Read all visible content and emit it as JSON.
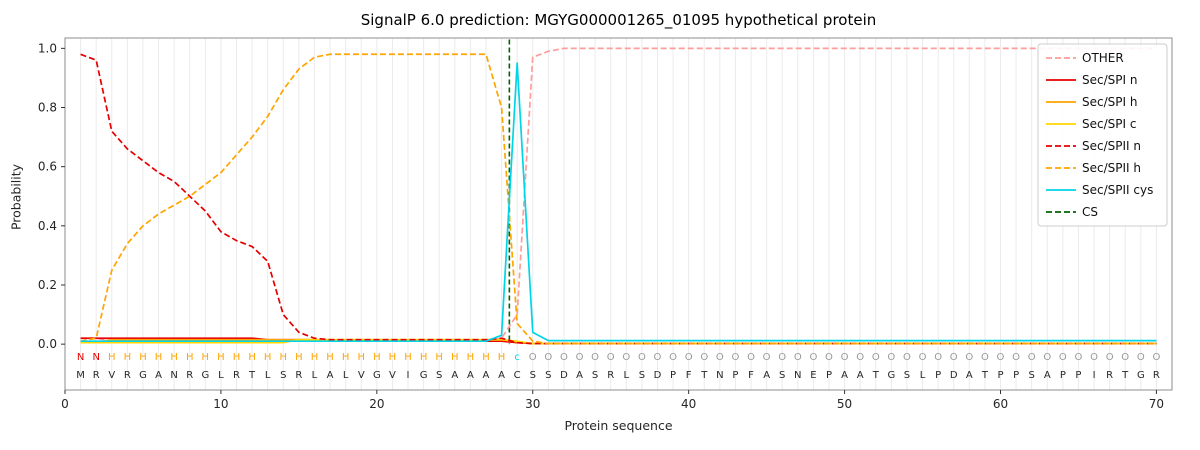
{
  "chart_data": {
    "type": "line",
    "title": "SignalP 6.0 prediction: MGYG000001265_01095 hypothetical protein",
    "xlabel": "Protein sequence",
    "ylabel": "Probability",
    "xlim": [
      0,
      71
    ],
    "ylim": [
      -0.155,
      1.035
    ],
    "xticks": [
      0,
      10,
      20,
      30,
      40,
      50,
      60,
      70
    ],
    "yticks": [
      0,
      0.2,
      0.4,
      0.6,
      0.8,
      1
    ],
    "grid": "vertical-line-per-residue",
    "legend_position": "upper-right",
    "sequence": "MRVRGANRGLRTLSRLALVGVIGSAAAACSSDASRLSDPFTNPFASNEPAATGSLPDATPPSAPPIRTGR",
    "annotation": "NNHHHHHHHHHHHHHHHHHHHHHHHHHHcOOOOOOOOOOOOOOOOOOOOOOOOOOOOOOOOOOOOOOOOO",
    "annotation_colors": {
      "N": "#e60000",
      "H": "#ffa500",
      "c": "#00d5e8",
      "O": "#999999"
    },
    "sequence_color": "#262626",
    "cs_line": {
      "label": "CS",
      "x": 28.5,
      "color": "#006400",
      "style": "dashed"
    },
    "legend_labels": [
      "OTHER",
      "Sec/SPI n",
      "Sec/SPI h",
      "Sec/SPI c",
      "Sec/SPII n",
      "Sec/SPII h",
      "Sec/SPII cys",
      "CS"
    ],
    "series": [
      {
        "name": "OTHER",
        "color": "#ff9c9c",
        "style": "dashed",
        "values": [
          0.02,
          0.02,
          0.01,
          0.01,
          0.01,
          0.01,
          0.01,
          0.01,
          0.01,
          0.01,
          0.01,
          0.01,
          0.01,
          0.01,
          0.01,
          0.01,
          0.01,
          0.01,
          0.01,
          0.01,
          0.01,
          0.01,
          0.01,
          0.01,
          0.01,
          0.01,
          0.01,
          0.02,
          0.1,
          0.97,
          0.99,
          1,
          1,
          1,
          1,
          1,
          1,
          1,
          1,
          1,
          1,
          1,
          1,
          1,
          1,
          1,
          1,
          1,
          1,
          1,
          1,
          1,
          1,
          1,
          1,
          1,
          1,
          1,
          1,
          1,
          1,
          1,
          1,
          1,
          1,
          1,
          1,
          1,
          1,
          1
        ]
      },
      {
        "name": "Sec/SPI n",
        "color": "#e60000",
        "style": "solid",
        "values": [
          0.02,
          0.02,
          0.02,
          0.02,
          0.02,
          0.02,
          0.02,
          0.02,
          0.02,
          0.02,
          0.02,
          0.02,
          0.015,
          0.015,
          0.015,
          0.015,
          0.01,
          0.01,
          0.01,
          0.01,
          0.01,
          0.01,
          0.01,
          0.01,
          0.01,
          0.01,
          0.01,
          0.01,
          0.005,
          0.002,
          0.002,
          0.002,
          0.002,
          0.002,
          0.002,
          0.002,
          0.002,
          0.002,
          0.002,
          0.002,
          0.002,
          0.002,
          0.002,
          0.002,
          0.002,
          0.002,
          0.002,
          0.002,
          0.002,
          0.002,
          0.002,
          0.002,
          0.002,
          0.002,
          0.002,
          0.002,
          0.002,
          0.002,
          0.002,
          0.002,
          0.002,
          0.002,
          0.002,
          0.002,
          0.002,
          0.002,
          0.002,
          0.002,
          0.002,
          0.002
        ]
      },
      {
        "name": "Sec/SPI h",
        "color": "#ffa500",
        "style": "solid",
        "values": [
          0.005,
          0.005,
          0.015,
          0.015,
          0.015,
          0.015,
          0.015,
          0.015,
          0.015,
          0.015,
          0.015,
          0.015,
          0.015,
          0.015,
          0.015,
          0.015,
          0.015,
          0.015,
          0.015,
          0.015,
          0.015,
          0.015,
          0.015,
          0.015,
          0.015,
          0.015,
          0.015,
          0.015,
          0.008,
          0.002,
          0.002,
          0.002,
          0.002,
          0.002,
          0.002,
          0.002,
          0.002,
          0.002,
          0.002,
          0.002,
          0.002,
          0.002,
          0.002,
          0.002,
          0.002,
          0.002,
          0.002,
          0.002,
          0.002,
          0.002,
          0.002,
          0.002,
          0.002,
          0.002,
          0.002,
          0.002,
          0.002,
          0.002,
          0.002,
          0.002,
          0.002,
          0.002,
          0.002,
          0.002,
          0.002,
          0.002,
          0.002,
          0.002,
          0.002,
          0.002
        ]
      },
      {
        "name": "Sec/SPI c",
        "color": "#ffd700",
        "style": "solid",
        "values": [
          0.005,
          0.005,
          0.005,
          0.005,
          0.005,
          0.005,
          0.005,
          0.005,
          0.005,
          0.005,
          0.005,
          0.005,
          0.005,
          0.005,
          0.015,
          0.015,
          0.015,
          0.015,
          0.015,
          0.015,
          0.015,
          0.015,
          0.015,
          0.015,
          0.015,
          0.015,
          0.015,
          0.015,
          0.01,
          0.002,
          0.002,
          0.002,
          0.002,
          0.002,
          0.002,
          0.002,
          0.002,
          0.002,
          0.002,
          0.002,
          0.002,
          0.002,
          0.002,
          0.002,
          0.002,
          0.002,
          0.002,
          0.002,
          0.002,
          0.002,
          0.002,
          0.002,
          0.002,
          0.002,
          0.002,
          0.002,
          0.002,
          0.002,
          0.002,
          0.002,
          0.002,
          0.002,
          0.002,
          0.002,
          0.002,
          0.002,
          0.002,
          0.002,
          0.002,
          0.002
        ]
      },
      {
        "name": "Sec/SPII n",
        "color": "#e60000",
        "style": "dashed",
        "values": [
          0.98,
          0.96,
          0.72,
          0.66,
          0.62,
          0.58,
          0.55,
          0.5,
          0.45,
          0.38,
          0.35,
          0.33,
          0.28,
          0.1,
          0.04,
          0.02,
          0.015,
          0.015,
          0.015,
          0.015,
          0.015,
          0.015,
          0.015,
          0.015,
          0.015,
          0.015,
          0.015,
          0.02,
          0.005,
          0.002,
          0.002,
          0.002,
          0.002,
          0.002,
          0.002,
          0.002,
          0.002,
          0.002,
          0.002,
          0.002,
          0.002,
          0.002,
          0.002,
          0.002,
          0.002,
          0.002,
          0.002,
          0.002,
          0.002,
          0.002,
          0.002,
          0.002,
          0.002,
          0.002,
          0.002,
          0.002,
          0.002,
          0.002,
          0.002,
          0.002,
          0.002,
          0.002,
          0.002,
          0.002,
          0.002,
          0.002,
          0.002,
          0.002,
          0.002,
          0.002
        ]
      },
      {
        "name": "Sec/SPII h",
        "color": "#ffa500",
        "style": "dashed",
        "values": [
          0.01,
          0.02,
          0.25,
          0.34,
          0.4,
          0.44,
          0.47,
          0.5,
          0.54,
          0.58,
          0.64,
          0.7,
          0.77,
          0.86,
          0.93,
          0.97,
          0.98,
          0.98,
          0.98,
          0.98,
          0.98,
          0.98,
          0.98,
          0.98,
          0.98,
          0.98,
          0.98,
          0.8,
          0.07,
          0.01,
          0.002,
          0.002,
          0.002,
          0.002,
          0.002,
          0.002,
          0.002,
          0.002,
          0.002,
          0.002,
          0.002,
          0.002,
          0.002,
          0.002,
          0.002,
          0.002,
          0.002,
          0.002,
          0.002,
          0.002,
          0.002,
          0.002,
          0.002,
          0.002,
          0.002,
          0.002,
          0.002,
          0.002,
          0.002,
          0.002,
          0.002,
          0.002,
          0.002,
          0.002,
          0.002,
          0.002,
          0.002,
          0.002,
          0.002,
          0.002
        ]
      },
      {
        "name": "Sec/SPII cys",
        "color": "#00d5e8",
        "style": "solid",
        "values": [
          0.01,
          0.01,
          0.01,
          0.01,
          0.01,
          0.01,
          0.01,
          0.01,
          0.01,
          0.01,
          0.01,
          0.01,
          0.01,
          0.01,
          0.01,
          0.01,
          0.01,
          0.01,
          0.01,
          0.01,
          0.01,
          0.01,
          0.01,
          0.01,
          0.01,
          0.01,
          0.01,
          0.03,
          0.95,
          0.04,
          0.012,
          0.012,
          0.012,
          0.012,
          0.012,
          0.012,
          0.012,
          0.012,
          0.012,
          0.012,
          0.012,
          0.012,
          0.012,
          0.012,
          0.012,
          0.012,
          0.012,
          0.012,
          0.012,
          0.012,
          0.012,
          0.012,
          0.012,
          0.012,
          0.012,
          0.012,
          0.012,
          0.012,
          0.012,
          0.012,
          0.012,
          0.012,
          0.012,
          0.012,
          0.012,
          0.012,
          0.012,
          0.012,
          0.012,
          0.012
        ]
      }
    ]
  }
}
